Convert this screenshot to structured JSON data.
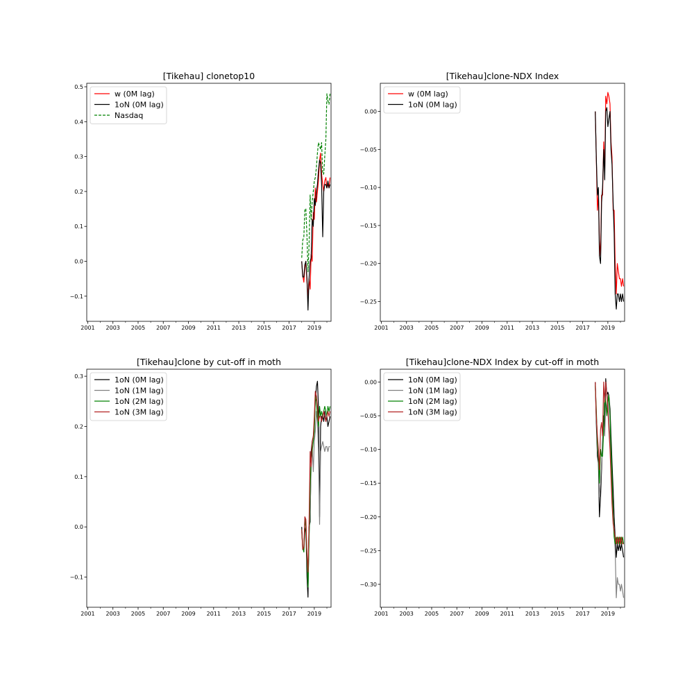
{
  "chart_data": [
    {
      "type": "line",
      "title": "[Tikehau] clonetop10",
      "xlim": [
        2000.92,
        2020.33
      ],
      "ylim": [
        -0.172,
        0.51
      ],
      "xticks": [
        2001,
        2003,
        2005,
        2007,
        2009,
        2011,
        2013,
        2015,
        2017,
        2019
      ],
      "yticks": [
        -0.1,
        0.0,
        0.1,
        0.2,
        0.3,
        0.4,
        0.5
      ],
      "ytick_labels": [
        "−0.1",
        "0.0",
        "0.1",
        "0.2",
        "0.3",
        "0.4",
        "0.5"
      ],
      "legend_location": "upper left",
      "series": [
        {
          "name": "w    (0M lag)",
          "color": "#ff0000",
          "dash": "solid",
          "x": [
            2018.0,
            2018.08,
            2018.17,
            2018.25,
            2018.33,
            2018.42,
            2018.5,
            2018.58,
            2018.67,
            2018.75,
            2018.83,
            2018.92,
            2019.0,
            2019.08,
            2019.17,
            2019.25,
            2019.33,
            2019.42,
            2019.5,
            2019.58,
            2019.67,
            2019.75,
            2019.83,
            2019.92,
            2020.0,
            2020.08,
            2020.17,
            2020.25
          ],
          "y": [
            0.0,
            -0.04,
            -0.06,
            -0.02,
            0.0,
            -0.06,
            -0.1,
            -0.05,
            -0.08,
            0.02,
            0.0,
            0.14,
            0.12,
            0.21,
            0.17,
            0.2,
            0.23,
            0.29,
            0.31,
            0.25,
            0.22,
            0.2,
            0.23,
            0.24,
            0.21,
            0.22,
            0.21,
            0.24
          ]
        },
        {
          "name": "1oN (0M lag)",
          "color": "#000000",
          "dash": "solid",
          "x": [
            2018.0,
            2018.08,
            2018.17,
            2018.25,
            2018.33,
            2018.42,
            2018.5,
            2018.58,
            2018.67,
            2018.75,
            2018.83,
            2018.92,
            2019.0,
            2019.08,
            2019.17,
            2019.25,
            2019.33,
            2019.42,
            2019.5,
            2019.58,
            2019.67,
            2019.75,
            2019.83,
            2019.92,
            2020.0,
            2020.08,
            2020.17,
            2020.25
          ],
          "y": [
            0.0,
            -0.045,
            -0.045,
            -0.01,
            0.0,
            -0.05,
            -0.14,
            -0.05,
            0.0,
            0.01,
            0.12,
            0.1,
            0.18,
            0.16,
            0.2,
            0.22,
            0.26,
            0.29,
            0.28,
            0.22,
            0.07,
            0.2,
            0.22,
            0.22,
            0.21,
            0.23,
            0.21,
            0.22
          ]
        },
        {
          "name": "Nasdaq",
          "color": "#008000",
          "dash": "dashed",
          "x": [
            2018.0,
            2018.08,
            2018.17,
            2018.25,
            2018.33,
            2018.42,
            2018.5,
            2018.58,
            2018.67,
            2018.75,
            2018.83,
            2018.92,
            2019.0,
            2019.08,
            2019.17,
            2019.25,
            2019.33,
            2019.42,
            2019.5,
            2019.58,
            2019.67,
            2019.75,
            2019.83,
            2019.92,
            2020.0,
            2020.08,
            2020.17,
            2020.25
          ],
          "y": [
            0.01,
            0.06,
            0.07,
            0.15,
            0.15,
            0.07,
            -0.03,
            0.04,
            0.19,
            0.12,
            0.17,
            0.2,
            0.23,
            0.24,
            0.27,
            0.31,
            0.34,
            0.33,
            0.32,
            0.34,
            0.25,
            0.25,
            0.3,
            0.35,
            0.48,
            0.46,
            0.45,
            0.48
          ]
        }
      ]
    },
    {
      "type": "line",
      "title": "[Tikehau]clone-NDX Index",
      "xlim": [
        2000.92,
        2020.33
      ],
      "ylim": [
        -0.276,
        0.037
      ],
      "xticks": [
        2001,
        2003,
        2005,
        2007,
        2009,
        2011,
        2013,
        2015,
        2017,
        2019
      ],
      "yticks": [
        -0.25,
        -0.2,
        -0.15,
        -0.1,
        -0.05,
        0.0
      ],
      "ytick_labels": [
        "−0.25",
        "−0.20",
        "−0.15",
        "−0.10",
        "−0.05",
        "0.00"
      ],
      "legend_location": "upper left",
      "series": [
        {
          "name": "w    (0M lag)",
          "color": "#ff0000",
          "dash": "solid",
          "x": [
            2018.0,
            2018.08,
            2018.17,
            2018.25,
            2018.33,
            2018.42,
            2018.5,
            2018.58,
            2018.67,
            2018.75,
            2018.83,
            2018.92,
            2019.0,
            2019.08,
            2019.17,
            2019.25,
            2019.33,
            2019.42,
            2019.5,
            2019.58,
            2019.67,
            2019.75,
            2019.83,
            2019.92,
            2020.0,
            2020.08,
            2020.17,
            2020.25
          ],
          "y": [
            0.0,
            -0.06,
            -0.13,
            -0.11,
            -0.17,
            -0.19,
            -0.11,
            -0.11,
            -0.04,
            -0.08,
            0.02,
            0.01,
            0.025,
            0.02,
            0.01,
            -0.04,
            -0.06,
            -0.13,
            -0.13,
            -0.2,
            -0.24,
            -0.2,
            -0.21,
            -0.22,
            -0.22,
            -0.23,
            -0.22,
            -0.23
          ]
        },
        {
          "name": "1oN (0M lag)",
          "color": "#000000",
          "dash": "solid",
          "x": [
            2018.0,
            2018.08,
            2018.17,
            2018.25,
            2018.33,
            2018.42,
            2018.5,
            2018.58,
            2018.67,
            2018.75,
            2018.83,
            2018.92,
            2019.0,
            2019.08,
            2019.17,
            2019.25,
            2019.33,
            2019.42,
            2019.5,
            2019.58,
            2019.67,
            2019.75,
            2019.83,
            2019.92,
            2020.0,
            2020.08,
            2020.17,
            2020.25
          ],
          "y": [
            0.0,
            -0.06,
            -0.11,
            -0.1,
            -0.19,
            -0.2,
            -0.12,
            -0.1,
            -0.05,
            -0.09,
            0.0,
            0.005,
            -0.02,
            -0.01,
            0.0,
            -0.05,
            -0.07,
            -0.12,
            -0.16,
            -0.24,
            -0.26,
            -0.24,
            -0.24,
            -0.25,
            -0.24,
            -0.25,
            -0.24,
            -0.25
          ]
        }
      ]
    },
    {
      "type": "line",
      "title": "[Tikehau]clone by cut-off in moth",
      "xlim": [
        2000.92,
        2020.33
      ],
      "ylim": [
        -0.16,
        0.314
      ],
      "xticks": [
        2001,
        2003,
        2005,
        2007,
        2009,
        2011,
        2013,
        2015,
        2017,
        2019
      ],
      "yticks": [
        -0.1,
        0.0,
        0.1,
        0.2,
        0.3
      ],
      "ytick_labels": [
        "−0.1",
        "0.0",
        "0.1",
        "0.2",
        "0.3"
      ],
      "legend_location": "upper left",
      "series": [
        {
          "name": "1oN (0M lag)",
          "color": "#000000",
          "dash": "solid",
          "x": [
            2018.0,
            2018.08,
            2018.17,
            2018.25,
            2018.33,
            2018.42,
            2018.5,
            2018.58,
            2018.67,
            2018.75,
            2018.83,
            2018.92,
            2019.0,
            2019.08,
            2019.17,
            2019.25,
            2019.33,
            2019.42,
            2019.5,
            2019.58,
            2019.67,
            2019.75,
            2019.83,
            2019.92,
            2020.0,
            2020.08,
            2020.17,
            2020.25
          ],
          "y": [
            0.0,
            -0.045,
            -0.045,
            -0.01,
            0.0,
            -0.1,
            -0.14,
            0.0,
            0.01,
            0.15,
            0.17,
            0.18,
            0.2,
            0.25,
            0.28,
            0.29,
            0.24,
            0.02,
            0.2,
            0.22,
            0.22,
            0.21,
            0.23,
            0.21,
            0.22,
            0.2,
            0.21,
            0.22
          ]
        },
        {
          "name": "1oN (1M lag)",
          "color": "#808080",
          "dash": "solid",
          "x": [
            2018.0,
            2018.08,
            2018.17,
            2018.25,
            2018.33,
            2018.42,
            2018.5,
            2018.58,
            2018.67,
            2018.75,
            2018.83,
            2018.92,
            2019.0,
            2019.08,
            2019.17,
            2019.25,
            2019.33,
            2019.42,
            2019.5,
            2019.58,
            2019.67,
            2019.75,
            2019.83,
            2019.92,
            2020.0,
            2020.08,
            2020.17,
            2020.25
          ],
          "y": [
            -0.01,
            -0.04,
            -0.05,
            0.02,
            0.01,
            -0.07,
            -0.12,
            -0.02,
            0.03,
            0.12,
            0.16,
            0.11,
            0.17,
            0.19,
            0.23,
            0.21,
            0.15,
            0.005,
            0.15,
            0.16,
            0.17,
            0.16,
            0.15,
            0.16,
            0.16,
            0.15,
            0.16,
            0.16
          ]
        },
        {
          "name": "1oN (2M lag)",
          "color": "#008000",
          "dash": "solid",
          "x": [
            2018.0,
            2018.08,
            2018.17,
            2018.25,
            2018.33,
            2018.42,
            2018.5,
            2018.58,
            2018.67,
            2018.75,
            2018.83,
            2018.92,
            2019.0,
            2019.08,
            2019.17,
            2019.25,
            2019.33,
            2019.42,
            2019.5,
            2019.58,
            2019.67,
            2019.75,
            2019.83,
            2019.92,
            2020.0,
            2020.08,
            2020.17,
            2020.25
          ],
          "y": [
            -0.005,
            -0.04,
            -0.05,
            0.015,
            0.0,
            -0.06,
            -0.12,
            -0.03,
            0.08,
            0.13,
            0.15,
            0.17,
            0.19,
            0.26,
            0.25,
            0.22,
            0.2,
            0.24,
            0.22,
            0.23,
            0.22,
            0.23,
            0.24,
            0.23,
            0.22,
            0.24,
            0.23,
            0.24
          ]
        },
        {
          "name": "1oN (3M lag)",
          "color": "#b22222",
          "dash": "solid",
          "x": [
            2018.0,
            2018.08,
            2018.17,
            2018.25,
            2018.33,
            2018.42,
            2018.5,
            2018.58,
            2018.67,
            2018.75,
            2018.83,
            2018.92,
            2019.0,
            2019.08,
            2019.17,
            2019.25,
            2019.33,
            2019.42,
            2019.5,
            2019.58,
            2019.67,
            2019.75,
            2019.83,
            2019.92,
            2020.0,
            2020.08,
            2020.17,
            2020.25
          ],
          "y": [
            -0.005,
            -0.045,
            -0.04,
            0.02,
            0.015,
            -0.05,
            -0.09,
            0.0,
            0.15,
            0.12,
            0.17,
            0.18,
            0.22,
            0.27,
            0.26,
            0.24,
            0.21,
            0.22,
            0.22,
            0.21,
            0.22,
            0.23,
            0.22,
            0.21,
            0.22,
            0.23,
            0.22,
            0.23
          ]
        }
      ]
    },
    {
      "type": "line",
      "title": "[Tikehau]clone-NDX Index by cut-off in moth",
      "xlim": [
        2000.92,
        2020.33
      ],
      "ylim": [
        -0.334,
        0.019
      ],
      "xticks": [
        2001,
        2003,
        2005,
        2007,
        2009,
        2011,
        2013,
        2015,
        2017,
        2019
      ],
      "yticks": [
        -0.3,
        -0.25,
        -0.2,
        -0.15,
        -0.1,
        -0.05,
        0.0
      ],
      "ytick_labels": [
        "−0.30",
        "−0.25",
        "−0.20",
        "−0.15",
        "−0.10",
        "−0.05",
        "0.00"
      ],
      "legend_location": "upper left",
      "series": [
        {
          "name": "1oN (0M lag)",
          "color": "#000000",
          "dash": "solid",
          "x": [
            2018.0,
            2018.08,
            2018.17,
            2018.25,
            2018.33,
            2018.42,
            2018.5,
            2018.58,
            2018.67,
            2018.75,
            2018.83,
            2018.92,
            2019.0,
            2019.08,
            2019.17,
            2019.25,
            2019.33,
            2019.42,
            2019.5,
            2019.58,
            2019.67,
            2019.75,
            2019.83,
            2019.92,
            2020.0,
            2020.08,
            2020.17,
            2020.25
          ],
          "y": [
            0.0,
            -0.06,
            -0.11,
            -0.12,
            -0.2,
            -0.17,
            -0.13,
            -0.09,
            -0.05,
            -0.07,
            0.005,
            -0.02,
            -0.015,
            -0.02,
            -0.04,
            -0.08,
            -0.12,
            -0.16,
            -0.2,
            -0.23,
            -0.26,
            -0.24,
            -0.25,
            -0.24,
            -0.25,
            -0.24,
            -0.25,
            -0.26
          ]
        },
        {
          "name": "1oN (1M lag)",
          "color": "#808080",
          "dash": "solid",
          "x": [
            2018.0,
            2018.08,
            2018.17,
            2018.25,
            2018.33,
            2018.42,
            2018.5,
            2018.58,
            2018.67,
            2018.75,
            2018.83,
            2018.92,
            2019.0,
            2019.08,
            2019.17,
            2019.25,
            2019.33,
            2019.42,
            2019.5,
            2019.58,
            2019.67,
            2019.75,
            2019.83,
            2019.92,
            2020.0,
            2020.08,
            2020.17,
            2020.25
          ],
          "y": [
            -0.005,
            -0.05,
            -0.1,
            -0.11,
            -0.17,
            -0.15,
            -0.12,
            -0.1,
            -0.06,
            -0.08,
            -0.03,
            -0.04,
            -0.02,
            -0.06,
            -0.08,
            -0.12,
            -0.16,
            -0.2,
            -0.22,
            -0.25,
            -0.32,
            -0.29,
            -0.3,
            -0.3,
            -0.31,
            -0.3,
            -0.31,
            -0.32
          ]
        },
        {
          "name": "1oN (2M lag)",
          "color": "#008000",
          "dash": "solid",
          "x": [
            2018.0,
            2018.08,
            2018.17,
            2018.25,
            2018.33,
            2018.42,
            2018.5,
            2018.58,
            2018.67,
            2018.75,
            2018.83,
            2018.92,
            2019.0,
            2019.08,
            2019.17,
            2019.25,
            2019.33,
            2019.42,
            2019.5,
            2019.58,
            2019.67,
            2019.75,
            2019.83,
            2019.92,
            2020.0,
            2020.08,
            2020.17,
            2020.25
          ],
          "y": [
            -0.005,
            -0.04,
            -0.09,
            -0.11,
            -0.15,
            -0.1,
            -0.11,
            -0.11,
            -0.07,
            -0.02,
            -0.03,
            -0.05,
            -0.03,
            -0.02,
            -0.05,
            -0.1,
            -0.14,
            -0.2,
            -0.23,
            -0.24,
            -0.23,
            -0.24,
            -0.23,
            -0.24,
            -0.23,
            -0.24,
            -0.23,
            -0.24
          ]
        },
        {
          "name": "1oN (3M lag)",
          "color": "#b22222",
          "dash": "solid",
          "x": [
            2018.0,
            2018.08,
            2018.17,
            2018.25,
            2018.33,
            2018.42,
            2018.5,
            2018.58,
            2018.67,
            2018.75,
            2018.83,
            2018.92,
            2019.0,
            2019.08,
            2019.17,
            2019.25,
            2019.33,
            2019.42,
            2019.5,
            2019.58,
            2019.67,
            2019.75,
            2019.83,
            2019.92,
            2020.0,
            2020.08,
            2020.17,
            2020.25
          ],
          "y": [
            0.0,
            -0.05,
            -0.08,
            -0.1,
            -0.13,
            -0.07,
            -0.06,
            -0.08,
            0.0,
            -0.03,
            0.0,
            -0.02,
            -0.04,
            -0.07,
            -0.1,
            -0.14,
            -0.18,
            -0.21,
            -0.22,
            -0.23,
            -0.24,
            -0.23,
            -0.24,
            -0.23,
            -0.24,
            -0.23,
            -0.24,
            -0.24
          ]
        }
      ]
    }
  ]
}
